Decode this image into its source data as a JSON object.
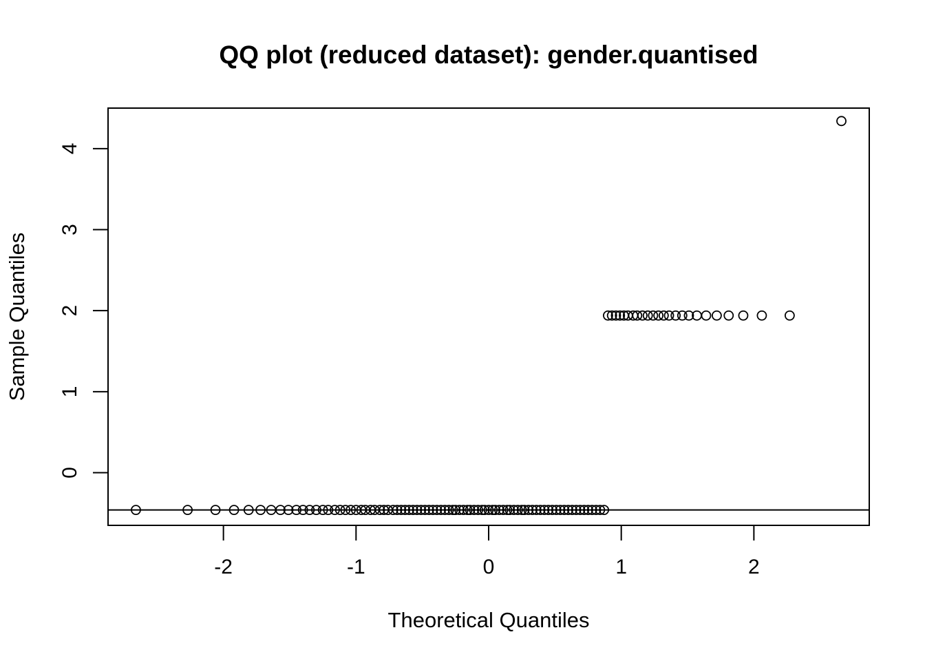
{
  "chart_data": {
    "type": "scatter",
    "title": "QQ plot (reduced dataset): gender.quantised",
    "xlabel": "Theoretical Quantiles",
    "ylabel": "Sample Quantiles",
    "xlim": [
      -2.87,
      2.87
    ],
    "ylim": [
      -0.65,
      4.5
    ],
    "x_ticks": [
      -2,
      -1,
      0,
      1,
      2
    ],
    "y_ticks": [
      0,
      1,
      2,
      3,
      4
    ],
    "reference_line_y": -0.46,
    "grid": false,
    "legend": "none",
    "point_style": "open-circle",
    "series": [
      {
        "points": [
          {
            "x": -2.66,
            "y": -0.46
          },
          {
            "x": -2.27,
            "y": -0.46
          },
          {
            "x": -2.06,
            "y": -0.46
          },
          {
            "x": -1.92,
            "y": -0.46
          },
          {
            "x": -1.81,
            "y": -0.46
          },
          {
            "x": -1.72,
            "y": -0.46
          },
          {
            "x": -1.64,
            "y": -0.46
          },
          {
            "x": -1.57,
            "y": -0.46
          },
          {
            "x": -1.51,
            "y": -0.46
          },
          {
            "x": -1.45,
            "y": -0.46
          },
          {
            "x": -1.4,
            "y": -0.46
          },
          {
            "x": -1.35,
            "y": -0.46
          },
          {
            "x": -1.3,
            "y": -0.46
          },
          {
            "x": -1.25,
            "y": -0.46
          },
          {
            "x": -1.21,
            "y": -0.46
          },
          {
            "x": -1.16,
            "y": -0.46
          },
          {
            "x": -1.12,
            "y": -0.46
          },
          {
            "x": -1.08,
            "y": -0.46
          },
          {
            "x": -1.04,
            "y": -0.46
          },
          {
            "x": -1.0,
            "y": -0.46
          },
          {
            "x": -0.96,
            "y": -0.46
          },
          {
            "x": -0.93,
            "y": -0.46
          },
          {
            "x": -0.89,
            "y": -0.46
          },
          {
            "x": -0.86,
            "y": -0.46
          },
          {
            "x": -0.82,
            "y": -0.46
          },
          {
            "x": -0.79,
            "y": -0.46
          },
          {
            "x": -0.76,
            "y": -0.46
          },
          {
            "x": -0.72,
            "y": -0.46
          },
          {
            "x": -0.69,
            "y": -0.46
          },
          {
            "x": -0.66,
            "y": -0.46
          },
          {
            "x": -0.63,
            "y": -0.46
          },
          {
            "x": -0.6,
            "y": -0.46
          },
          {
            "x": -0.57,
            "y": -0.46
          },
          {
            "x": -0.54,
            "y": -0.46
          },
          {
            "x": -0.51,
            "y": -0.46
          },
          {
            "x": -0.48,
            "y": -0.46
          },
          {
            "x": -0.45,
            "y": -0.46
          },
          {
            "x": -0.42,
            "y": -0.46
          },
          {
            "x": -0.39,
            "y": -0.46
          },
          {
            "x": -0.36,
            "y": -0.46
          },
          {
            "x": -0.33,
            "y": -0.46
          },
          {
            "x": -0.3,
            "y": -0.46
          },
          {
            "x": -0.27,
            "y": -0.46
          },
          {
            "x": -0.25,
            "y": -0.46
          },
          {
            "x": -0.22,
            "y": -0.46
          },
          {
            "x": -0.19,
            "y": -0.46
          },
          {
            "x": -0.16,
            "y": -0.46
          },
          {
            "x": -0.14,
            "y": -0.46
          },
          {
            "x": -0.11,
            "y": -0.46
          },
          {
            "x": -0.08,
            "y": -0.46
          },
          {
            "x": -0.05,
            "y": -0.46
          },
          {
            "x": -0.03,
            "y": -0.46
          },
          {
            "x": 0.0,
            "y": -0.46
          },
          {
            "x": 0.03,
            "y": -0.46
          },
          {
            "x": 0.05,
            "y": -0.46
          },
          {
            "x": 0.08,
            "y": -0.46
          },
          {
            "x": 0.11,
            "y": -0.46
          },
          {
            "x": 0.14,
            "y": -0.46
          },
          {
            "x": 0.16,
            "y": -0.46
          },
          {
            "x": 0.19,
            "y": -0.46
          },
          {
            "x": 0.22,
            "y": -0.46
          },
          {
            "x": 0.25,
            "y": -0.46
          },
          {
            "x": 0.27,
            "y": -0.46
          },
          {
            "x": 0.3,
            "y": -0.46
          },
          {
            "x": 0.33,
            "y": -0.46
          },
          {
            "x": 0.36,
            "y": -0.46
          },
          {
            "x": 0.39,
            "y": -0.46
          },
          {
            "x": 0.42,
            "y": -0.46
          },
          {
            "x": 0.45,
            "y": -0.46
          },
          {
            "x": 0.48,
            "y": -0.46
          },
          {
            "x": 0.51,
            "y": -0.46
          },
          {
            "x": 0.54,
            "y": -0.46
          },
          {
            "x": 0.57,
            "y": -0.46
          },
          {
            "x": 0.6,
            "y": -0.46
          },
          {
            "x": 0.63,
            "y": -0.46
          },
          {
            "x": 0.66,
            "y": -0.46
          },
          {
            "x": 0.69,
            "y": -0.46
          },
          {
            "x": 0.72,
            "y": -0.46
          },
          {
            "x": 0.75,
            "y": -0.46
          },
          {
            "x": 0.78,
            "y": -0.46
          },
          {
            "x": 0.81,
            "y": -0.46
          },
          {
            "x": 0.84,
            "y": -0.46
          },
          {
            "x": 0.87,
            "y": -0.46
          },
          {
            "x": 0.9,
            "y": 1.94
          },
          {
            "x": 0.93,
            "y": 1.94
          },
          {
            "x": 0.96,
            "y": 1.94
          },
          {
            "x": 0.99,
            "y": 1.94
          },
          {
            "x": 1.02,
            "y": 1.94
          },
          {
            "x": 1.05,
            "y": 1.94
          },
          {
            "x": 1.09,
            "y": 1.94
          },
          {
            "x": 1.12,
            "y": 1.94
          },
          {
            "x": 1.16,
            "y": 1.94
          },
          {
            "x": 1.2,
            "y": 1.94
          },
          {
            "x": 1.24,
            "y": 1.94
          },
          {
            "x": 1.28,
            "y": 1.94
          },
          {
            "x": 1.32,
            "y": 1.94
          },
          {
            "x": 1.36,
            "y": 1.94
          },
          {
            "x": 1.41,
            "y": 1.94
          },
          {
            "x": 1.46,
            "y": 1.94
          },
          {
            "x": 1.51,
            "y": 1.94
          },
          {
            "x": 1.57,
            "y": 1.94
          },
          {
            "x": 1.64,
            "y": 1.94
          },
          {
            "x": 1.72,
            "y": 1.94
          },
          {
            "x": 1.81,
            "y": 1.94
          },
          {
            "x": 1.92,
            "y": 1.94
          },
          {
            "x": 2.06,
            "y": 1.94
          },
          {
            "x": 2.27,
            "y": 1.94
          },
          {
            "x": 2.66,
            "y": 4.34
          }
        ]
      }
    ]
  }
}
